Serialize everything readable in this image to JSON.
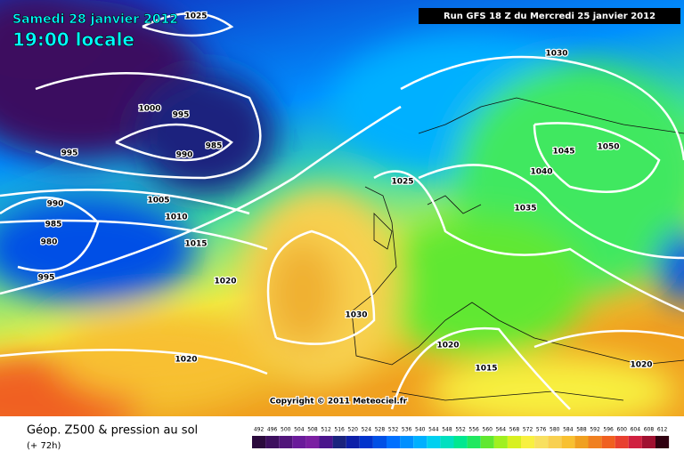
{
  "header": {
    "date": "Samedi 28 janvier 2012",
    "time": "19:00 locale",
    "run": "Run GFS 18 Z du Mercredi 25 janvier 2012"
  },
  "map": {
    "isobar_labels": [
      1025,
      1030,
      1000,
      995,
      985,
      990,
      995,
      1005,
      1010,
      1015,
      1025,
      1045,
      1050,
      1040,
      1035,
      990,
      985,
      980,
      995,
      1020,
      1030,
      1020,
      1015,
      1020,
      1020
    ],
    "copyright": "Copyright © 2011 Meteociel.fr"
  },
  "footer": {
    "title": "Géop. Z500 & pression au sol",
    "lead": "(+ 72h)",
    "scale": {
      "ticks": [
        492,
        496,
        500,
        504,
        508,
        512,
        516,
        520,
        524,
        528,
        532,
        536,
        540,
        544,
        548,
        552,
        556,
        560,
        564,
        568,
        572,
        576,
        580,
        584,
        588,
        592,
        596,
        600,
        604,
        608,
        612
      ],
      "colors": [
        "#2b0a3d",
        "#3d0f5e",
        "#51157a",
        "#6a1b9a",
        "#7b1fa2",
        "#4a148c",
        "#1a237e",
        "#0d1fa8",
        "#0033cc",
        "#0050e6",
        "#0070ff",
        "#0090ff",
        "#00b0ff",
        "#00d0f0",
        "#00e0c0",
        "#00e890",
        "#20e860",
        "#60e830",
        "#a0f020",
        "#d8f020",
        "#f8f040",
        "#f8e060",
        "#f8d050",
        "#f8c030",
        "#f0a020",
        "#f08020",
        "#f06020",
        "#e84030",
        "#d02040",
        "#a01030",
        "#300010"
      ]
    }
  }
}
